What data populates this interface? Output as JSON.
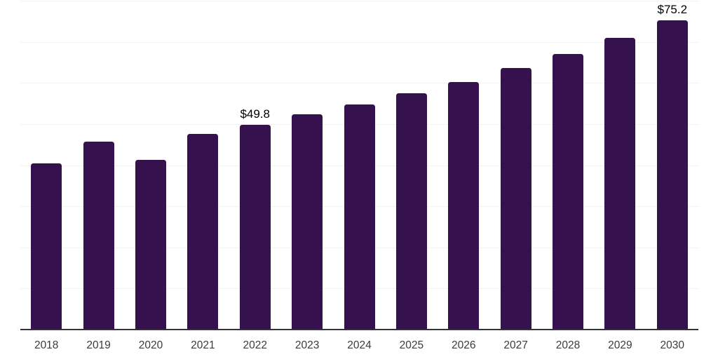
{
  "chart": {
    "background_color": "#ffffff",
    "bar_color": "#35114D",
    "axis_line_color": "#333333",
    "gridline_color": "#f2f1f4",
    "tick_label_color": "#3b3b3b",
    "value_label_color": "#000000"
  },
  "chart_data": {
    "type": "bar",
    "title": "",
    "xlabel": "",
    "ylabel": "",
    "categories": [
      "2018",
      "2019",
      "2020",
      "2021",
      "2022",
      "2023",
      "2024",
      "2025",
      "2026",
      "2027",
      "2028",
      "2029",
      "2030"
    ],
    "values": [
      40.4,
      45.7,
      41.3,
      47.6,
      49.8,
      52.3,
      54.8,
      57.5,
      60.2,
      63.6,
      67.1,
      71.0,
      75.2
    ],
    "data_labels": [
      {
        "category": "2022",
        "text": "$49.8"
      },
      {
        "category": "2030",
        "text": "$75.2"
      }
    ],
    "ylim": [
      0,
      80
    ],
    "grid_step": 10,
    "grid": "horizontal-only",
    "legend": "none",
    "y_axis_tick_labels_visible": false
  }
}
